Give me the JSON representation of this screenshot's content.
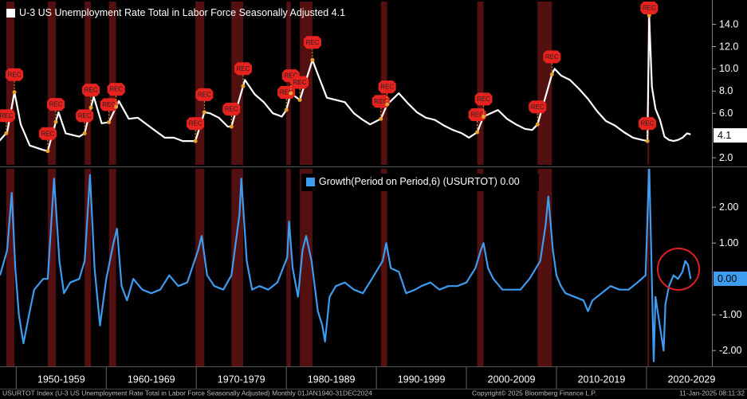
{
  "chart_data": [
    {
      "type": "line",
      "series": [
        {
          "name": "U-3 US Unemployment Rate Total in Labor Force Seasonally Adjusted",
          "color": "#ffffff",
          "values": [
            3.4,
            4.3,
            7.9,
            5.0,
            3.1,
            2.7,
            2.6,
            6.1,
            4.2,
            3.9,
            4.2,
            7.5,
            5.1,
            5.2,
            7.1,
            5.5,
            5.6,
            5.0,
            4.4,
            3.8,
            3.8,
            3.5,
            3.5,
            3.5,
            6.1,
            6.0,
            5.6,
            4.8,
            4.8,
            9.0,
            7.7,
            7.0,
            6.0,
            5.7,
            6.3,
            7.8,
            7.2,
            10.8,
            9.5,
            7.4,
            7.2,
            7.0,
            6.0,
            5.4,
            5.0,
            5.5,
            6.8,
            7.8,
            6.9,
            6.1,
            5.6,
            5.4,
            4.9,
            4.5,
            4.2,
            3.8,
            4.3,
            5.7,
            6.3,
            5.5,
            5.0,
            4.6,
            4.5,
            5.0,
            9.5,
            10.0,
            9.4,
            9.0,
            8.2,
            7.3,
            6.2,
            5.3,
            4.9,
            4.3,
            3.8,
            3.6,
            3.5,
            14.8,
            8.4,
            6.4,
            5.4,
            3.9,
            3.6,
            3.5,
            3.6,
            3.8,
            4.2,
            4.1
          ]
        }
      ],
      "x": [
        1948.0,
        1949.0,
        1949.8,
        1950.5,
        1951.5,
        1953.0,
        1953.5,
        1954.7,
        1955.5,
        1957.0,
        1957.6,
        1958.6,
        1959.5,
        1960.3,
        1961.4,
        1962.5,
        1963.5,
        1964.5,
        1965.5,
        1966.5,
        1967.5,
        1968.5,
        1969.5,
        1969.9,
        1970.9,
        1971.5,
        1972.5,
        1973.5,
        1973.9,
        1975.4,
        1976.5,
        1977.5,
        1978.5,
        1979.5,
        1980.0,
        1980.5,
        1981.5,
        1982.9,
        1983.5,
        1984.5,
        1985.5,
        1986.5,
        1987.5,
        1988.5,
        1989.3,
        1990.5,
        1991.2,
        1992.5,
        1993.5,
        1994.5,
        1995.5,
        1996.5,
        1997.5,
        1998.5,
        1999.5,
        2000.3,
        2001.2,
        2001.9,
        2003.5,
        2004.5,
        2005.5,
        2006.5,
        2007.3,
        2007.9,
        2009.5,
        2009.8,
        2010.5,
        2011.5,
        2012.5,
        2013.5,
        2014.5,
        2015.5,
        2016.5,
        2017.5,
        2018.5,
        2019.5,
        2020.1,
        2020.3,
        2020.6,
        2021.0,
        2021.5,
        2022.0,
        2022.5,
        2023.0,
        2023.5,
        2024.0,
        2024.5,
        2024.9
      ],
      "legend_value": "4.1",
      "last_value_label": "4.1",
      "xlim": [
        1948.2,
        2027
      ],
      "ylim": [
        1.36,
        16.05
      ],
      "yticks": [
        {
          "value": 2,
          "label": "2.0"
        },
        {
          "value": 6,
          "label": "6.0"
        },
        {
          "value": 8,
          "label": "8.0"
        },
        {
          "value": 10,
          "label": "10.0"
        },
        {
          "value": 12,
          "label": "12.0"
        },
        {
          "value": 14,
          "label": "14.0"
        }
      ],
      "recessions": [
        {
          "start": 1948.9,
          "end": 1949.8,
          "labels": [
            "REC",
            "REC"
          ]
        },
        {
          "start": 1953.5,
          "end": 1954.4,
          "labels": [
            "REC",
            "REC"
          ]
        },
        {
          "start": 1957.6,
          "end": 1958.3,
          "labels": [
            "REC",
            "REC"
          ]
        },
        {
          "start": 1960.3,
          "end": 1961.1,
          "labels": [
            "REC",
            "REC"
          ]
        },
        {
          "start": 1969.9,
          "end": 1970.9,
          "labels": [
            "REC",
            "REC"
          ]
        },
        {
          "start": 1973.9,
          "end": 1975.2,
          "labels": [
            "REC",
            "REC"
          ]
        },
        {
          "start": 1980.0,
          "end": 1980.5,
          "labels": [
            "REC",
            "REC"
          ]
        },
        {
          "start": 1981.5,
          "end": 1982.9,
          "labels": [
            "REC",
            "REC"
          ]
        },
        {
          "start": 1990.5,
          "end": 1991.2,
          "labels": [
            "REC",
            "REC"
          ]
        },
        {
          "start": 2001.2,
          "end": 2001.9,
          "labels": [
            "REC",
            "REC"
          ]
        },
        {
          "start": 2007.9,
          "end": 2009.5,
          "labels": [
            "REC",
            "REC"
          ]
        },
        {
          "start": 2020.1,
          "end": 2020.3,
          "labels": [
            "REC",
            "REC"
          ]
        }
      ]
    },
    {
      "type": "line",
      "series": [
        {
          "name": "Growth(Period on Period,6) (USURTOT)",
          "color": "#3d9bf0",
          "values": [
            0.1,
            0.8,
            2.4,
            0.3,
            -1.0,
            -1.8,
            -0.9,
            -0.3,
            0.0,
            0.0,
            2.8,
            0.5,
            -0.4,
            -0.1,
            0.0,
            0.5,
            2.9,
            0.3,
            -1.3,
            0.0,
            1.0,
            1.4,
            -0.2,
            -0.6,
            0.0,
            -0.3,
            -0.4,
            -0.3,
            0.1,
            -0.2,
            -0.1,
            0.8,
            1.2,
            0.1,
            -0.2,
            -0.3,
            0.1,
            1.8,
            2.8,
            0.5,
            -0.3,
            -0.2,
            -0.3,
            -0.1,
            0.6,
            1.6,
            0.3,
            -0.5,
            0.8,
            1.2,
            0.5,
            -0.9,
            -1.3,
            -1.75,
            -0.5,
            -0.2,
            -0.1,
            -0.3,
            -0.4,
            0.0,
            0.5,
            1.0,
            0.3,
            0.2,
            -0.4,
            -0.3,
            -0.2,
            -0.1,
            -0.3,
            -0.2,
            -0.2,
            -0.1,
            0.3,
            0.8,
            1.0,
            0.3,
            0.0,
            -0.3,
            -0.3,
            -0.3,
            0.0,
            0.5,
            1.5,
            2.3,
            0.8,
            0.1,
            -0.2,
            -0.4,
            -0.5,
            -0.6,
            -0.9,
            -0.6,
            -0.4,
            -0.2,
            -0.3,
            -0.3,
            -0.1,
            0.1,
            3.2,
            -2.3,
            -0.5,
            -2.0,
            -0.7,
            -0.2,
            0.1,
            0.0,
            0.2,
            0.5,
            0.4,
            0.0
          ]
        }
      ],
      "x": [
        1948.2,
        1949.0,
        1949.5,
        1949.9,
        1950.3,
        1950.8,
        1951.5,
        1952.0,
        1953.0,
        1953.5,
        1954.2,
        1954.8,
        1955.3,
        1956.0,
        1957.0,
        1957.6,
        1958.2,
        1958.7,
        1959.3,
        1960.0,
        1960.8,
        1961.2,
        1961.7,
        1962.3,
        1963.0,
        1964.0,
        1965.0,
        1966.0,
        1967.0,
        1968.0,
        1969.0,
        1970.2,
        1970.6,
        1971.2,
        1972.0,
        1973.0,
        1973.9,
        1974.8,
        1975.0,
        1975.6,
        1976.2,
        1977.0,
        1978.0,
        1979.0,
        1980.1,
        1980.3,
        1980.7,
        1981.3,
        1981.8,
        1982.2,
        1982.8,
        1983.5,
        1984.0,
        1984.3,
        1984.8,
        1985.5,
        1986.5,
        1987.5,
        1988.5,
        1989.5,
        1990.7,
        1991.1,
        1991.6,
        1992.5,
        1993.3,
        1994.3,
        1995.0,
        1996.0,
        1997.0,
        1998.0,
        1999.0,
        2000.0,
        2001.0,
        2001.6,
        2001.9,
        2002.4,
        2003.0,
        2004.0,
        2005.0,
        2006.0,
        2007.0,
        2008.2,
        2008.8,
        2009.1,
        2009.6,
        2010.0,
        2010.5,
        2011.0,
        2012.0,
        2013.0,
        2013.5,
        2014.0,
        2015.0,
        2016.0,
        2017.0,
        2018.0,
        2019.0,
        2019.9,
        2020.3,
        2020.8,
        2021.0,
        2021.9,
        2022.1,
        2022.5,
        2023.0,
        2023.5,
        2024.0,
        2024.3,
        2024.6,
        2024.9
      ],
      "legend_value": "0.00",
      "last_value_label": "0.00",
      "xlim": [
        1948.2,
        2027
      ],
      "ylim": [
        -2.44,
        3.07
      ],
      "yticks": [
        {
          "value": 2,
          "label": "2.00"
        },
        {
          "value": 1,
          "label": "1.00"
        },
        {
          "value": -1,
          "label": "-1.00"
        },
        {
          "value": -2,
          "label": "-2.00"
        }
      ],
      "xticks": [
        {
          "value": 1955,
          "label": "1950-1959"
        },
        {
          "value": 1965,
          "label": "1960-1969"
        },
        {
          "value": 1975,
          "label": "1970-1979"
        },
        {
          "value": 1985,
          "label": "1980-1989"
        },
        {
          "value": 1995,
          "label": "1990-1999"
        },
        {
          "value": 2005,
          "label": "2000-2009"
        },
        {
          "value": 2015,
          "label": "2010-2019"
        },
        {
          "value": 2025,
          "label": "2020-2029"
        }
      ]
    }
  ],
  "footer": {
    "source": "USURTOT Index (U-3 US Unemployment Rate Total in Labor Force Seasonally Adjusted) Monthly 01JAN1940-31DEC2024",
    "copyright": "Copyright© 2025 Bloomberg Finance L.P.",
    "timestamp": "11-Jan-2025 08:11:32"
  }
}
